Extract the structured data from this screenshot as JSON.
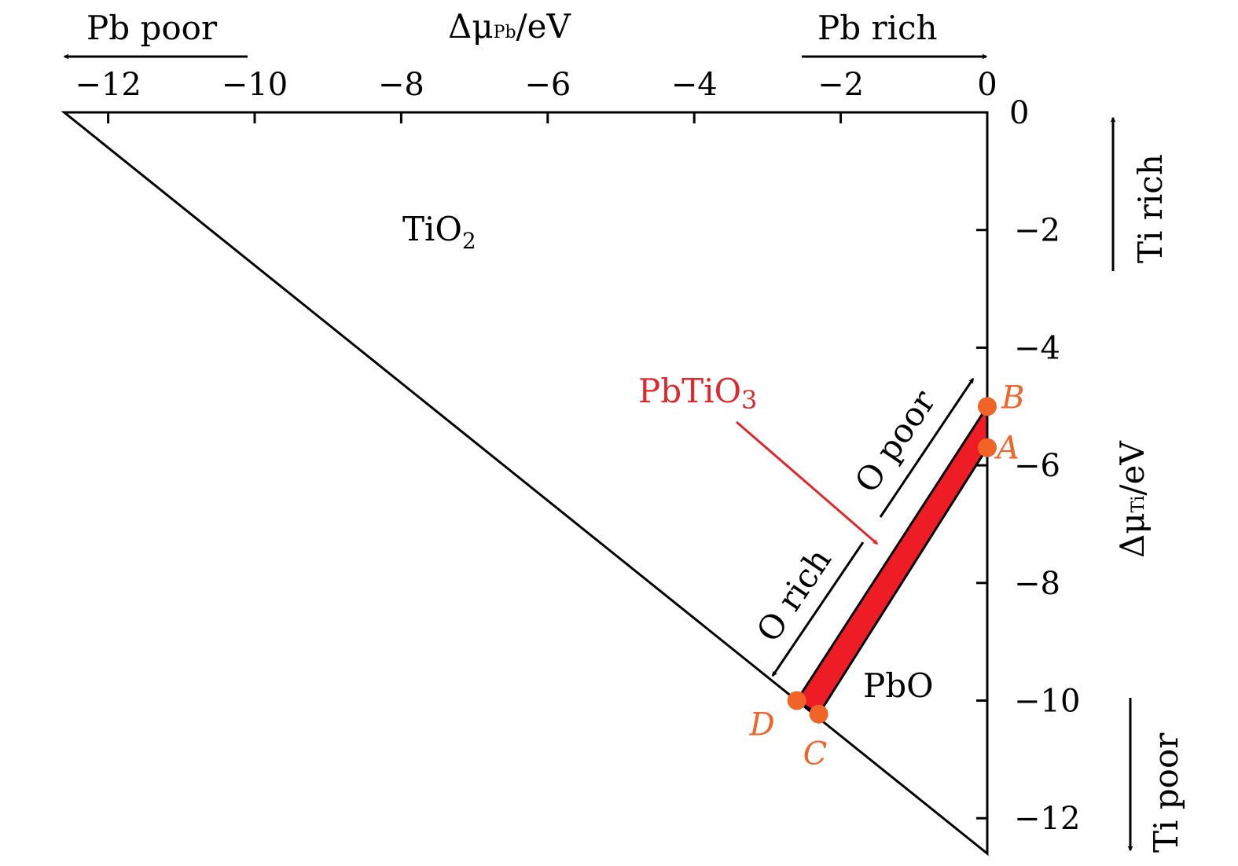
{
  "chart_data": {
    "type": "area",
    "x_axis": {
      "label_main": "Δμ",
      "label_sub": "Pb",
      "label_unit": "/eV",
      "range": [
        -12.6,
        0
      ],
      "ticks": [
        -12,
        -10,
        -8,
        -6,
        -4,
        -2,
        0
      ],
      "tick_labels": [
        "−12",
        "−10",
        "−8",
        "−6",
        "−4",
        "−2",
        "0"
      ],
      "position": "top"
    },
    "y_axis": {
      "label_main": "Δμ",
      "label_sub": "Ti",
      "label_unit": "/eV",
      "range": [
        -12.6,
        0
      ],
      "ticks": [
        0,
        -2,
        -4,
        -6,
        -8,
        -10,
        -12
      ],
      "tick_labels": [
        "0",
        "−2",
        "−4",
        "−6",
        "−8",
        "−10",
        "−12"
      ],
      "position": "right"
    },
    "triangle": [
      [
        -12.6,
        0
      ],
      [
        0,
        0
      ],
      [
        0,
        -12.6
      ]
    ],
    "stable_region": {
      "name": "PbTiO3",
      "color": "#ee1c25",
      "polygon": [
        [
          0,
          -5.0
        ],
        [
          0,
          -5.7
        ],
        [
          -2.3,
          -10.23
        ],
        [
          -2.6,
          -10.0
        ]
      ]
    },
    "points": [
      {
        "label": "A",
        "x": 0,
        "y": -5.7
      },
      {
        "label": "B",
        "x": 0,
        "y": -5.0
      },
      {
        "label": "C",
        "x": -2.3,
        "y": -10.23
      },
      {
        "label": "D",
        "x": -2.6,
        "y": -10.0
      }
    ],
    "point_color": "#f06428",
    "regions": [
      {
        "label_main": "TiO",
        "label_sub": "2",
        "x": -7.3,
        "y": -2.0
      },
      {
        "label_main": "PbO",
        "label_sub": "",
        "x": -1.1,
        "y": -9.8
      }
    ],
    "pbtio3_label": {
      "label_main": "PbTiO",
      "label_sub": "3",
      "color": "#e0282c"
    },
    "directions": {
      "pb_poor": "Pb poor",
      "pb_rich": "Pb rich",
      "ti_rich": "Ti rich",
      "ti_poor": "Ti poor",
      "o_poor": "O poor",
      "o_rich": "O rich"
    }
  }
}
